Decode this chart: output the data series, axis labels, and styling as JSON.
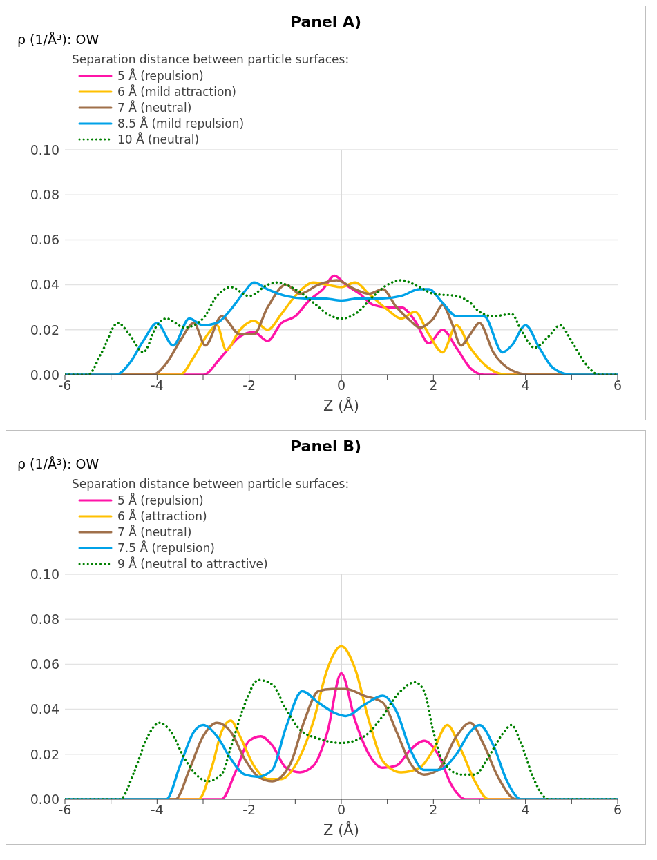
{
  "chart_data": [
    {
      "type": "line",
      "title": "Panel A)",
      "ylabel": "ρ (1/Å³): OW",
      "xlabel": "Z (Å)",
      "legend_title": "Separation distance between particle surfaces:",
      "legend": "top left",
      "grid": "y",
      "marker": "none",
      "xlim": [
        -6,
        6
      ],
      "xticks": [
        -6,
        {
          "value": -5,
          "label": null
        },
        -4,
        {
          "value": -3,
          "label": null
        },
        -2,
        {
          "value": -1,
          "label": null
        },
        0,
        {
          "value": 1,
          "label": null
        },
        2,
        {
          "value": 3,
          "label": null
        },
        4,
        {
          "value": 5,
          "label": null
        },
        6
      ],
      "ylim": [
        0,
        0.1
      ],
      "yticks": [
        {
          "value": 0,
          "label": "0.00"
        },
        {
          "value": 0.02,
          "label": "0.02"
        },
        {
          "value": 0.04,
          "label": "0.04"
        },
        {
          "value": 0.06,
          "label": "0.06"
        },
        {
          "value": 0.08,
          "label": "0.08"
        },
        {
          "value": 0.1,
          "label": "0.10"
        }
      ],
      "ref_lines": [
        {
          "axis": "x",
          "value": 0,
          "color": "#d9d9d9"
        }
      ],
      "series": [
        {
          "name": "5 Å (repulsion)",
          "color": "#ff14a8",
          "line_style": "solid",
          "x": [
            -6,
            -3.0,
            -2.6,
            -2.2,
            -1.9,
            -1.6,
            -1.3,
            -1.0,
            -0.7,
            -0.4,
            -0.15,
            0.1,
            0.4,
            0.7,
            1.0,
            1.3,
            1.6,
            1.9,
            2.2,
            2.5,
            2.8,
            3.1,
            6
          ],
          "values": [
            0,
            0,
            0.008,
            0.017,
            0.019,
            0.015,
            0.023,
            0.026,
            0.033,
            0.038,
            0.044,
            0.04,
            0.036,
            0.031,
            0.03,
            0.03,
            0.024,
            0.014,
            0.02,
            0.012,
            0.003,
            0,
            0
          ]
        },
        {
          "name": "6 Å (mild attraction)",
          "color": "#ffc000",
          "line_style": "solid",
          "x": [
            -6,
            -3.5,
            -3.2,
            -2.9,
            -2.7,
            -2.5,
            -2.2,
            -1.9,
            -1.6,
            -1.3,
            -1.0,
            -0.6,
            -0.3,
            0,
            0.3,
            0.6,
            1.0,
            1.3,
            1.6,
            1.9,
            2.2,
            2.5,
            2.8,
            3.2,
            3.6,
            6
          ],
          "values": [
            0,
            0,
            0.008,
            0.018,
            0.022,
            0.011,
            0.02,
            0.024,
            0.02,
            0.027,
            0.035,
            0.041,
            0.04,
            0.039,
            0.041,
            0.036,
            0.029,
            0.025,
            0.028,
            0.018,
            0.01,
            0.022,
            0.012,
            0.003,
            0,
            0
          ]
        },
        {
          "name": "7 Å (neutral)",
          "color": "#a0704a",
          "line_style": "solid",
          "x": [
            -6,
            -4.1,
            -3.8,
            -3.5,
            -3.2,
            -2.95,
            -2.6,
            -2.2,
            -1.9,
            -1.6,
            -1.2,
            -0.9,
            -0.5,
            -0.1,
            0.3,
            0.6,
            0.9,
            1.2,
            1.5,
            1.7,
            2.0,
            2.2,
            2.4,
            2.6,
            2.8,
            3.0,
            3.3,
            3.7,
            4.1,
            6
          ],
          "values": [
            0,
            0,
            0.005,
            0.015,
            0.023,
            0.013,
            0.026,
            0.018,
            0.018,
            0.03,
            0.04,
            0.036,
            0.04,
            0.042,
            0.038,
            0.036,
            0.038,
            0.03,
            0.024,
            0.021,
            0.025,
            0.031,
            0.023,
            0.013,
            0.018,
            0.023,
            0.01,
            0.002,
            0,
            0
          ]
        },
        {
          "name": "8.5 Å (mild repulsion)",
          "color": "#00a2e8",
          "line_style": "solid",
          "x": [
            -6,
            -4.9,
            -4.6,
            -4.3,
            -4.0,
            -3.65,
            -3.3,
            -3.0,
            -2.7,
            -2.4,
            -2.1,
            -1.9,
            -1.6,
            -1.2,
            -0.8,
            -0.4,
            0,
            0.4,
            0.9,
            1.3,
            1.7,
            1.9,
            2.2,
            2.5,
            2.8,
            3.1,
            3.5,
            3.7,
            4.0,
            4.3,
            4.6,
            5.0,
            6
          ],
          "values": [
            0,
            0,
            0.005,
            0.015,
            0.023,
            0.013,
            0.025,
            0.022,
            0.023,
            0.029,
            0.037,
            0.041,
            0.038,
            0.035,
            0.034,
            0.034,
            0.033,
            0.034,
            0.034,
            0.035,
            0.038,
            0.038,
            0.032,
            0.026,
            0.026,
            0.026,
            0.01,
            0.013,
            0.022,
            0.012,
            0.003,
            0,
            0
          ]
        },
        {
          "name": "10 Å (neutral)",
          "color": "#008000",
          "line_style": "dotted",
          "x": [
            -6,
            -5.5,
            -5.2,
            -4.85,
            -4.6,
            -4.3,
            -4.0,
            -3.8,
            -3.4,
            -3.0,
            -2.7,
            -2.4,
            -2.0,
            -1.6,
            -1.4,
            -1.0,
            -0.6,
            -0.3,
            0,
            0.3,
            0.7,
            1.0,
            1.3,
            1.7,
            2.0,
            2.5,
            2.8,
            3.0,
            3.3,
            3.7,
            3.9,
            4.2,
            4.5,
            4.75,
            5.0,
            5.3,
            5.6,
            6
          ],
          "values": [
            0,
            0,
            0.01,
            0.023,
            0.018,
            0.01,
            0.022,
            0.025,
            0.021,
            0.025,
            0.035,
            0.039,
            0.035,
            0.04,
            0.041,
            0.038,
            0.032,
            0.027,
            0.025,
            0.027,
            0.035,
            0.04,
            0.042,
            0.039,
            0.036,
            0.035,
            0.032,
            0.028,
            0.026,
            0.027,
            0.02,
            0.012,
            0.017,
            0.022,
            0.015,
            0.005,
            0,
            0
          ]
        }
      ]
    },
    {
      "type": "line",
      "title": "Panel B)",
      "ylabel": "ρ (1/Å³): OW",
      "xlabel": "Z (Å)",
      "legend_title": "Separation distance between particle surfaces:",
      "legend": "top left",
      "grid": "y",
      "marker": "none",
      "xlim": [
        -6,
        6
      ],
      "xticks": [
        -6,
        {
          "value": -5,
          "label": null
        },
        -4,
        {
          "value": -3,
          "label": null
        },
        -2,
        {
          "value": -1,
          "label": null
        },
        0,
        {
          "value": 1,
          "label": null
        },
        2,
        {
          "value": 3,
          "label": null
        },
        4,
        {
          "value": 5,
          "label": null
        },
        6
      ],
      "ylim": [
        0,
        0.1
      ],
      "yticks": [
        {
          "value": 0,
          "label": "0.00"
        },
        {
          "value": 0.02,
          "label": "0.02"
        },
        {
          "value": 0.04,
          "label": "0.04"
        },
        {
          "value": 0.06,
          "label": "0.06"
        },
        {
          "value": 0.08,
          "label": "0.08"
        },
        {
          "value": 0.1,
          "label": "0.10"
        }
      ],
      "ref_lines": [
        {
          "axis": "x",
          "value": 0,
          "color": "#d9d9d9"
        }
      ],
      "series": [
        {
          "name": "5 Å (repulsion)",
          "color": "#ff14a8",
          "line_style": "solid",
          "x": [
            -6,
            -2.6,
            -2.3,
            -2.0,
            -1.75,
            -1.5,
            -1.2,
            -0.9,
            -0.6,
            -0.3,
            0,
            0.3,
            0.6,
            0.9,
            1.2,
            1.5,
            1.8,
            2.1,
            2.4,
            2.7,
            6
          ],
          "values": [
            0,
            0,
            0.012,
            0.026,
            0.028,
            0.024,
            0.014,
            0.012,
            0.015,
            0.03,
            0.056,
            0.035,
            0.02,
            0.014,
            0.015,
            0.022,
            0.026,
            0.02,
            0.006,
            0,
            0
          ]
        },
        {
          "name": "6 Å (attraction)",
          "color": "#ffc000",
          "line_style": "solid",
          "x": [
            -6,
            -3.1,
            -2.8,
            -2.6,
            -2.4,
            -2.2,
            -1.9,
            -1.6,
            -1.3,
            -1.0,
            -0.6,
            -0.3,
            0,
            0.3,
            0.6,
            0.9,
            1.3,
            1.7,
            2.0,
            2.3,
            2.6,
            2.9,
            3.2,
            6
          ],
          "values": [
            0,
            0,
            0.015,
            0.03,
            0.035,
            0.028,
            0.015,
            0.009,
            0.009,
            0.015,
            0.035,
            0.058,
            0.068,
            0.058,
            0.035,
            0.017,
            0.012,
            0.014,
            0.022,
            0.033,
            0.022,
            0.008,
            0,
            0
          ]
        },
        {
          "name": "7 Å (neutral)",
          "color": "#a0704a",
          "line_style": "solid",
          "x": [
            -6,
            -3.6,
            -3.3,
            -3.0,
            -2.7,
            -2.4,
            -2.1,
            -1.8,
            -1.5,
            -1.1,
            -0.8,
            -0.5,
            -0.2,
            0.1,
            0.5,
            0.9,
            1.2,
            1.5,
            1.8,
            2.1,
            2.5,
            2.8,
            3.1,
            3.4,
            3.8,
            6
          ],
          "values": [
            0,
            0,
            0.013,
            0.028,
            0.034,
            0.03,
            0.018,
            0.01,
            0.008,
            0.016,
            0.035,
            0.048,
            0.049,
            0.049,
            0.046,
            0.043,
            0.03,
            0.016,
            0.011,
            0.013,
            0.028,
            0.034,
            0.024,
            0.01,
            0,
            0
          ]
        },
        {
          "name": "7.5 Å (repulsion)",
          "color": "#00a2e8",
          "line_style": "solid",
          "x": [
            -6,
            -3.8,
            -3.5,
            -3.2,
            -3.0,
            -2.7,
            -2.4,
            -2.1,
            -1.8,
            -1.5,
            -1.2,
            -0.85,
            -0.5,
            -0.1,
            0.1,
            0.5,
            0.9,
            1.2,
            1.5,
            1.8,
            2.1,
            2.5,
            2.8,
            3.0,
            3.3,
            3.6,
            3.9,
            6
          ],
          "values": [
            0,
            0,
            0.015,
            0.03,
            0.033,
            0.028,
            0.018,
            0.011,
            0.01,
            0.013,
            0.032,
            0.048,
            0.043,
            0.038,
            0.037,
            0.042,
            0.046,
            0.039,
            0.022,
            0.013,
            0.013,
            0.02,
            0.03,
            0.033,
            0.024,
            0.008,
            0,
            0
          ]
        },
        {
          "name": "9 Å (neutral to attractive)",
          "color": "#008000",
          "line_style": "dotted",
          "x": [
            -6,
            -4.8,
            -4.5,
            -4.2,
            -3.95,
            -3.7,
            -3.4,
            -3.1,
            -2.9,
            -2.6,
            -2.4,
            -2.1,
            -1.8,
            -1.5,
            -1.2,
            -0.9,
            -0.5,
            0,
            0.5,
            0.9,
            1.2,
            1.6,
            1.8,
            2.0,
            2.2,
            2.6,
            2.9,
            3.2,
            3.5,
            3.7,
            3.9,
            4.2,
            4.5,
            6
          ],
          "values": [
            0,
            0,
            0.012,
            0.028,
            0.034,
            0.03,
            0.018,
            0.01,
            0.008,
            0.011,
            0.023,
            0.042,
            0.053,
            0.051,
            0.04,
            0.031,
            0.027,
            0.025,
            0.028,
            0.037,
            0.046,
            0.052,
            0.048,
            0.03,
            0.017,
            0.011,
            0.011,
            0.019,
            0.029,
            0.033,
            0.025,
            0.008,
            0,
            0
          ]
        }
      ]
    }
  ]
}
